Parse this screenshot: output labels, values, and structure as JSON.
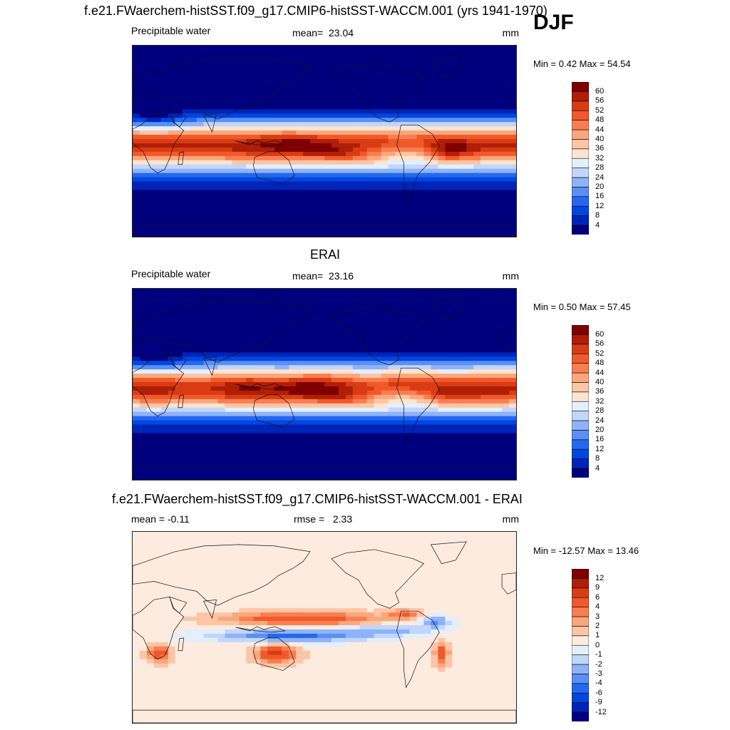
{
  "header": {
    "title": "f.e21.FWaerchem-histSST.f09_g17.CMIP6-histSST-WACCM.001 (yrs 1941-1970)",
    "season": "DJF"
  },
  "colors": {
    "abs_scale": [
      "#00007f",
      "#0024b8",
      "#0047e0",
      "#2468f0",
      "#5b8ff5",
      "#8fb3f8",
      "#c0d6fb",
      "#e3efff",
      "#fde4cf",
      "#fcc5a5",
      "#fba77c",
      "#f97e51",
      "#f1592b",
      "#d93c13",
      "#b01e07",
      "#7f0000"
    ],
    "diff_scale": [
      "#00007f",
      "#0024b8",
      "#0047e0",
      "#2468f0",
      "#5b8ff5",
      "#8fb3f8",
      "#c0d6fb",
      "#e3efff",
      "#fdebe0",
      "#fcc5a5",
      "#fba77c",
      "#f97e51",
      "#f1592b",
      "#d93c13",
      "#b01e07",
      "#7f0000"
    ]
  },
  "panels": [
    {
      "title": "",
      "left": "Precipitable water",
      "center_label": "mean=",
      "center_value": "23.04",
      "units": "mm",
      "minmax": "Min =   0.42 Max =  54.54",
      "kind": "abs"
    },
    {
      "title": "ERAI",
      "left": "Precipitable water",
      "center_label": "mean=",
      "center_value": "23.16",
      "units": "mm",
      "minmax": "Min =   0.50 Max =  57.45",
      "kind": "abs"
    },
    {
      "title": "f.e21.FWaerchem-histSST.f09_g17.CMIP6-histSST-WACCM.001 - ERAI",
      "left": "mean =  -0.11",
      "center_label": "rmse =",
      "center_value": "2.33",
      "units": "mm",
      "minmax": "Min = -12.57 Max =  13.46",
      "kind": "diff"
    }
  ],
  "chart_data": [
    {
      "type": "heatmap",
      "title": "",
      "variable": "Precipitable water",
      "units": "mm",
      "mean": 23.04,
      "min": 0.42,
      "max": 54.54,
      "colorbar_levels": [
        4,
        8,
        12,
        16,
        20,
        24,
        28,
        32,
        36,
        40,
        44,
        48,
        52,
        56,
        60
      ]
    },
    {
      "type": "heatmap",
      "title": "ERAI",
      "variable": "Precipitable water",
      "units": "mm",
      "mean": 23.16,
      "min": 0.5,
      "max": 57.45,
      "colorbar_levels": [
        4,
        8,
        12,
        16,
        20,
        24,
        28,
        32,
        36,
        40,
        44,
        48,
        52,
        56,
        60
      ]
    },
    {
      "type": "heatmap",
      "title": "f.e21.FWaerchem-histSST.f09_g17.CMIP6-histSST-WACCM.001 - ERAI",
      "units": "mm",
      "mean": -0.11,
      "rmse": 2.33,
      "min": -12.57,
      "max": 13.46,
      "colorbar_levels": [
        -12,
        -9,
        -6,
        -4,
        -3,
        -2,
        -1,
        0,
        1,
        2,
        3,
        4,
        6,
        9,
        12
      ]
    }
  ]
}
